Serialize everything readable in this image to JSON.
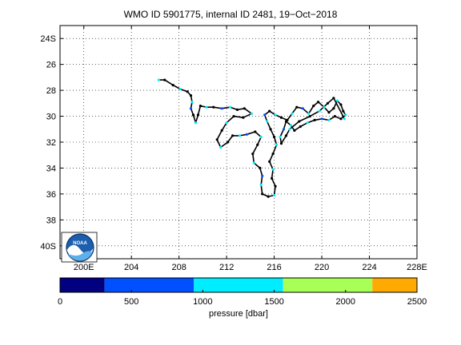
{
  "title": "WMO ID 5901775, internal ID 2481, 19−Oct−2018",
  "map": {
    "lon_range": [
      198,
      228
    ],
    "lat_range": [
      -41,
      -23
    ],
    "x_ticks": [
      {
        "value": 200,
        "label": "200E"
      },
      {
        "value": 204,
        "label": "204"
      },
      {
        "value": 208,
        "label": "208"
      },
      {
        "value": 212,
        "label": "212"
      },
      {
        "value": 216,
        "label": "216"
      },
      {
        "value": 220,
        "label": "220"
      },
      {
        "value": 224,
        "label": "224"
      },
      {
        "value": 228,
        "label": "228E"
      }
    ],
    "y_ticks": [
      {
        "value": -24,
        "label": "24S"
      },
      {
        "value": -26,
        "label": "26"
      },
      {
        "value": -28,
        "label": "28"
      },
      {
        "value": -30,
        "label": "30"
      },
      {
        "value": -32,
        "label": "32"
      },
      {
        "value": -34,
        "label": "34"
      },
      {
        "value": -36,
        "label": "36"
      },
      {
        "value": -38,
        "label": "38"
      },
      {
        "value": -40,
        "label": "40S"
      }
    ],
    "grid": "dotted",
    "track_color": "#000000",
    "logo": "noaa-logo",
    "logo_text": "NOAA"
  },
  "chart_data": {
    "type": "scatter",
    "x_unit": "longitude (degrees E)",
    "y_unit": "latitude (degrees, negative = S)",
    "series": [
      {
        "points": [
          [
            206.3,
            -27.2
          ],
          [
            206.8,
            -27.2
          ],
          [
            207.5,
            -27.6
          ],
          [
            208.1,
            -27.9
          ],
          [
            208.7,
            -28.1
          ],
          [
            209.0,
            -28.4
          ],
          [
            209.1,
            -28.9
          ],
          [
            209.0,
            -29.4
          ],
          [
            209.2,
            -29.9
          ],
          [
            209.4,
            -30.5
          ],
          [
            209.6,
            -29.9
          ],
          [
            209.8,
            -29.2
          ],
          [
            210.3,
            -29.3
          ],
          [
            210.9,
            -29.3
          ],
          [
            211.6,
            -29.4
          ],
          [
            212.3,
            -29.3
          ],
          [
            212.9,
            -29.5
          ],
          [
            213.5,
            -29.4
          ],
          [
            214.1,
            -29.8
          ],
          [
            213.4,
            -30.1
          ],
          [
            212.6,
            -30.0
          ],
          [
            212.0,
            -30.5
          ],
          [
            211.6,
            -31.1
          ],
          [
            211.2,
            -31.8
          ],
          [
            211.5,
            -32.4
          ],
          [
            212.1,
            -32.0
          ],
          [
            212.5,
            -31.5
          ],
          [
            213.1,
            -31.5
          ],
          [
            213.7,
            -31.4
          ],
          [
            214.4,
            -31.2
          ],
          [
            214.9,
            -31.6
          ],
          [
            214.6,
            -32.2
          ],
          [
            214.2,
            -32.9
          ],
          [
            214.3,
            -33.6
          ],
          [
            214.8,
            -34.0
          ],
          [
            215.0,
            -34.6
          ],
          [
            214.9,
            -35.3
          ],
          [
            215.0,
            -36.0
          ],
          [
            215.5,
            -36.2
          ],
          [
            216.0,
            -36.1
          ],
          [
            216.1,
            -35.4
          ],
          [
            215.8,
            -34.8
          ],
          [
            215.9,
            -34.1
          ],
          [
            215.6,
            -33.5
          ],
          [
            215.9,
            -32.9
          ],
          [
            216.2,
            -32.2
          ],
          [
            216.0,
            -31.6
          ],
          [
            215.7,
            -31.0
          ],
          [
            215.4,
            -30.4
          ],
          [
            215.2,
            -29.9
          ],
          [
            215.6,
            -29.6
          ],
          [
            216.1,
            -29.9
          ],
          [
            216.6,
            -30.1
          ],
          [
            217.1,
            -30.3
          ],
          [
            217.5,
            -29.8
          ],
          [
            217.9,
            -29.3
          ],
          [
            218.4,
            -29.4
          ],
          [
            218.9,
            -29.8
          ],
          [
            219.3,
            -29.2
          ],
          [
            219.7,
            -28.9
          ],
          [
            220.2,
            -29.3
          ],
          [
            220.6,
            -29.7
          ],
          [
            221.0,
            -29.4
          ],
          [
            221.3,
            -28.8
          ],
          [
            221.6,
            -29.1
          ],
          [
            221.8,
            -29.6
          ],
          [
            222.0,
            -29.9
          ],
          [
            221.6,
            -30.2
          ],
          [
            221.1,
            -30.0
          ],
          [
            220.6,
            -30.3
          ],
          [
            220.0,
            -30.2
          ],
          [
            219.4,
            -30.3
          ],
          [
            218.8,
            -30.5
          ],
          [
            218.2,
            -30.8
          ],
          [
            217.7,
            -31.1
          ],
          [
            217.4,
            -30.7
          ],
          [
            217.0,
            -30.4
          ],
          [
            216.8,
            -31.0
          ],
          [
            216.5,
            -31.6
          ],
          [
            216.6,
            -32.1
          ],
          [
            217.0,
            -31.5
          ],
          [
            217.3,
            -31.0
          ],
          [
            218.1,
            -30.4
          ],
          [
            219.0,
            -30.0
          ],
          [
            219.8,
            -29.6
          ],
          [
            220.5,
            -29.0
          ],
          [
            221.0,
            -28.6
          ],
          [
            221.9,
            -30.2
          ]
        ]
      }
    ]
  },
  "colorbar": {
    "label": "pressure [dbar]",
    "min": 0,
    "max": 2500,
    "tick_values": [
      0,
      500,
      1000,
      1500,
      2000,
      2500
    ],
    "tick_labels": [
      "0",
      "500",
      "1000",
      "1500",
      "2000",
      "2500"
    ],
    "bins": [
      {
        "from": 0,
        "to": 312.5,
        "color": "#000080"
      },
      {
        "from": 312.5,
        "to": 937.5,
        "color": "#0050ff"
      },
      {
        "from": 937.5,
        "to": 1562.5,
        "color": "#00ecff"
      },
      {
        "from": 1562.5,
        "to": 2187.5,
        "color": "#a8ff55"
      },
      {
        "from": 2187.5,
        "to": 2500,
        "color": "#ffaa00"
      }
    ]
  }
}
